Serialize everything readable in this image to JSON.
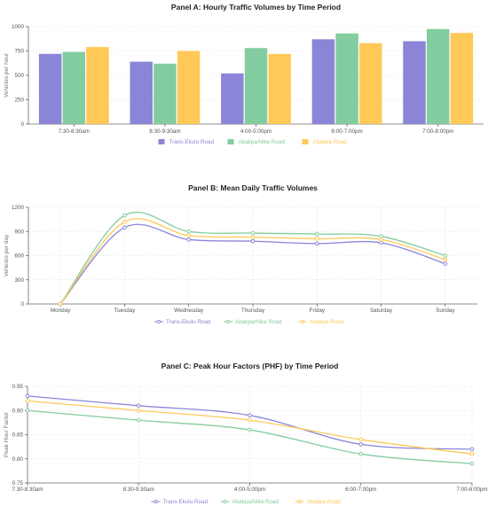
{
  "chart_data": [
    {
      "type": "bar",
      "title": "Panel A: Hourly Traffic Volumes by Time Period",
      "ylabel": "Vehicles per hour",
      "xlabel": "",
      "ylim": [
        0,
        1000
      ],
      "yticks": [
        0,
        250,
        500,
        750,
        1000
      ],
      "grid": true,
      "legend": "bottom",
      "categories": [
        "7:30-8:30am",
        "8:30-9:30am",
        "4:00-5:00pm",
        "6:00-7:00pm",
        "7:00-8:00pm"
      ],
      "series": [
        {
          "name": "Trans-Ekulu Road",
          "color": "#8b85d8",
          "values": [
            720,
            640,
            520,
            870,
            850
          ]
        },
        {
          "name": "Abakpa/Nike Road",
          "color": "#83cc9f",
          "values": [
            740,
            620,
            780,
            930,
            975
          ]
        },
        {
          "name": "Abakpa Road",
          "color": "#ffc857",
          "values": [
            790,
            750,
            720,
            830,
            935
          ]
        }
      ]
    },
    {
      "type": "line",
      "title": "Panel B: Mean Daily Traffic Volumes",
      "ylabel": "Vehicles per day",
      "xlabel": "",
      "ylim": [
        0,
        1200
      ],
      "yticks": [
        0,
        300,
        600,
        900,
        1200
      ],
      "grid": true,
      "legend": "bottom",
      "categories": [
        "Monday",
        "Tuesday",
        "Wednesday",
        "Thursday",
        "Friday",
        "Saturday",
        "Sunday"
      ],
      "series": [
        {
          "name": "Trans-Ekulu Road",
          "color": "#8b85d8",
          "values": [
            0,
            950,
            800,
            780,
            750,
            760,
            500
          ]
        },
        {
          "name": "Abakpa/Nike Road",
          "color": "#83cc9f",
          "values": [
            0,
            1100,
            900,
            880,
            870,
            840,
            600
          ]
        },
        {
          "name": "Abakpa Road",
          "color": "#ffc857",
          "values": [
            0,
            1020,
            850,
            830,
            810,
            800,
            550
          ]
        }
      ]
    },
    {
      "type": "line",
      "title": "Panel C: Peak Hour Factors (PHF) by Time Period",
      "ylabel": "Peak Hour Factor",
      "xlabel": "",
      "ylim": [
        0.75,
        0.95
      ],
      "yticks": [
        0.75,
        0.8,
        0.85,
        0.9,
        0.95
      ],
      "grid": true,
      "legend": "bottom",
      "categories": [
        "7:30-8:30am",
        "8:30-9:30am",
        "4:00-5:00pm",
        "6:00-7:00pm",
        "7:00-8:00pm"
      ],
      "series": [
        {
          "name": "Trans-Ekulu Road",
          "color": "#8b85d8",
          "values": [
            0.93,
            0.91,
            0.89,
            0.83,
            0.82
          ]
        },
        {
          "name": "Abakpa/Nike Road",
          "color": "#83cc9f",
          "values": [
            0.9,
            0.88,
            0.86,
            0.81,
            0.79
          ]
        },
        {
          "name": "Abakpa Road",
          "color": "#ffc857",
          "values": [
            0.92,
            0.9,
            0.88,
            0.84,
            0.81
          ]
        }
      ]
    }
  ]
}
